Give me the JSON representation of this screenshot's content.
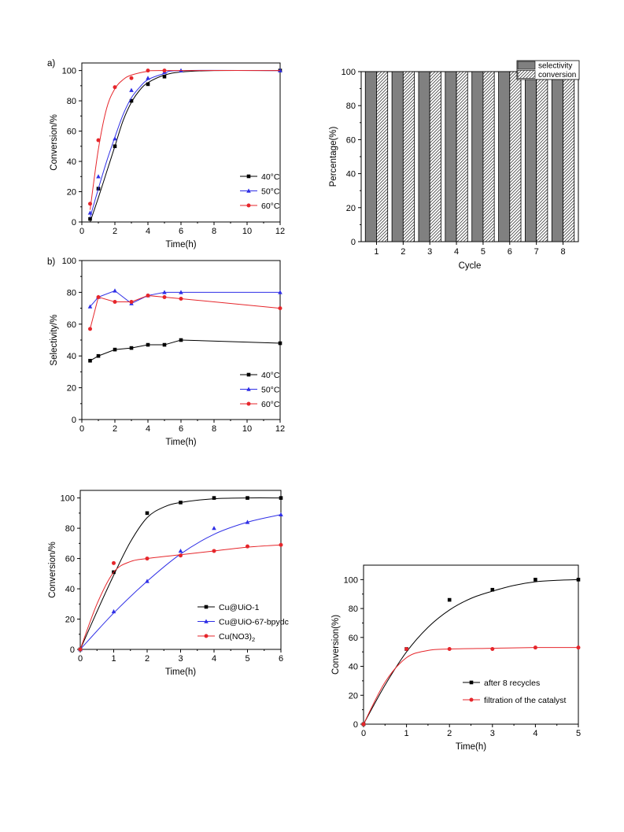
{
  "colors": {
    "black": "#000000",
    "blue": "#2f2fe6",
    "red": "#e6262b",
    "bar_fill": "#808080"
  },
  "chart_data": [
    {
      "id": "a",
      "type": "line",
      "panel_label": "a)",
      "xlabel": "Time(h)",
      "ylabel": "Conversion/%",
      "xlim": [
        0,
        12
      ],
      "ylim": [
        0,
        105
      ],
      "xticks": [
        0,
        2,
        4,
        6,
        8,
        10,
        12
      ],
      "yticks": [
        0,
        20,
        40,
        60,
        80,
        100
      ],
      "legend_position": "bottom-right",
      "series": [
        {
          "name": "40°C",
          "color": "#000000",
          "marker": "square",
          "points": [
            [
              0.5,
              2
            ],
            [
              1,
              22
            ],
            [
              2,
              50
            ],
            [
              3,
              80
            ],
            [
              4,
              91
            ],
            [
              5,
              96
            ],
            [
              12,
              100
            ]
          ],
          "curve": [
            [
              0.5,
              0
            ],
            [
              1,
              16
            ],
            [
              1.5,
              33
            ],
            [
              2,
              50
            ],
            [
              2.5,
              67
            ],
            [
              3,
              79
            ],
            [
              3.5,
              87
            ],
            [
              4,
              92
            ],
            [
              5,
              97
            ],
            [
              6,
              99
            ],
            [
              8,
              100
            ],
            [
              12,
              100
            ]
          ]
        },
        {
          "name": "50°C",
          "color": "#2f2fe6",
          "marker": "triangle",
          "points": [
            [
              0.5,
              6
            ],
            [
              1,
              30
            ],
            [
              2,
              55
            ],
            [
              3,
              87
            ],
            [
              4,
              95
            ],
            [
              5,
              99
            ],
            [
              6,
              100
            ],
            [
              12,
              100
            ]
          ],
          "curve": [
            [
              0.5,
              3
            ],
            [
              1,
              22
            ],
            [
              1.5,
              40
            ],
            [
              2,
              56
            ],
            [
              2.5,
              71
            ],
            [
              3,
              82
            ],
            [
              3.5,
              89
            ],
            [
              4,
              94
            ],
            [
              5,
              98
            ],
            [
              6,
              100
            ],
            [
              12,
              100
            ]
          ]
        },
        {
          "name": "60°C",
          "color": "#e6262b",
          "marker": "circle",
          "points": [
            [
              0.5,
              12
            ],
            [
              1,
              54
            ],
            [
              2,
              89
            ],
            [
              3,
              95
            ],
            [
              4,
              100
            ],
            [
              5,
              100
            ]
          ],
          "curve": [
            [
              0.5,
              8
            ],
            [
              1,
              48
            ],
            [
              1.5,
              75
            ],
            [
              2,
              88
            ],
            [
              2.5,
              94
            ],
            [
              3,
              97
            ],
            [
              4,
              99.5
            ],
            [
              5,
              100
            ],
            [
              12,
              100
            ]
          ]
        }
      ]
    },
    {
      "id": "b",
      "type": "line",
      "panel_label": "b)",
      "xlabel": "Time(h)",
      "ylabel": "Selectivity/%",
      "xlim": [
        0,
        12
      ],
      "ylim": [
        0,
        100
      ],
      "xticks": [
        0,
        2,
        4,
        6,
        8,
        10,
        12
      ],
      "yticks": [
        0,
        20,
        40,
        60,
        80,
        100
      ],
      "legend_position": "bottom-right",
      "series": [
        {
          "name": "40°C",
          "color": "#000000",
          "marker": "square",
          "points": [
            [
              0.5,
              37
            ],
            [
              1,
              40
            ],
            [
              2,
              44
            ],
            [
              3,
              45
            ],
            [
              4,
              47
            ],
            [
              5,
              47
            ],
            [
              6,
              50
            ],
            [
              12,
              48
            ]
          ]
        },
        {
          "name": "50°C",
          "color": "#2f2fe6",
          "marker": "triangle",
          "points": [
            [
              0.5,
              71
            ],
            [
              1,
              77
            ],
            [
              2,
              81
            ],
            [
              3,
              73
            ],
            [
              4,
              78
            ],
            [
              5,
              80
            ],
            [
              6,
              80
            ],
            [
              12,
              80
            ]
          ]
        },
        {
          "name": "60°C",
          "color": "#e6262b",
          "marker": "circle",
          "points": [
            [
              0.5,
              57
            ],
            [
              1,
              77
            ],
            [
              2,
              74
            ],
            [
              3,
              74
            ],
            [
              4,
              78
            ],
            [
              5,
              77
            ],
            [
              6,
              76
            ],
            [
              12,
              70
            ]
          ]
        }
      ]
    },
    {
      "id": "c",
      "type": "bar",
      "xlabel": "Cycle",
      "ylabel": "Percentage(%)",
      "ylim": [
        0,
        100
      ],
      "yticks": [
        0,
        20,
        40,
        60,
        80,
        100
      ],
      "categories": [
        "1",
        "2",
        "3",
        "4",
        "5",
        "6",
        "7",
        "8"
      ],
      "legend_position": "top-right",
      "series": [
        {
          "name": "selectivity",
          "pattern": "solid",
          "values": [
            100,
            100,
            100,
            100,
            100,
            100,
            100,
            100
          ]
        },
        {
          "name": "conversion",
          "pattern": "hatched",
          "values": [
            100,
            100,
            100,
            100,
            100,
            100,
            100,
            100
          ]
        }
      ]
    },
    {
      "id": "d",
      "type": "line",
      "xlabel": "Time(h)",
      "ylabel": "Conversion/%",
      "xlim": [
        0,
        6
      ],
      "ylim": [
        0,
        105
      ],
      "xticks": [
        0,
        1,
        2,
        3,
        4,
        5,
        6
      ],
      "yticks": [
        0,
        20,
        40,
        60,
        80,
        100
      ],
      "legend_position": "bottom-right",
      "series": [
        {
          "name": "Cu@UiO-1",
          "color": "#000000",
          "marker": "square",
          "points": [
            [
              0,
              0
            ],
            [
              1,
              51
            ],
            [
              2,
              90
            ],
            [
              3,
              97
            ],
            [
              4,
              100
            ],
            [
              5,
              100
            ],
            [
              6,
              100
            ]
          ],
          "curve": [
            [
              0,
              0
            ],
            [
              0.5,
              25
            ],
            [
              1,
              49
            ],
            [
              1.5,
              71
            ],
            [
              2,
              87
            ],
            [
              2.5,
              94
            ],
            [
              3,
              97
            ],
            [
              4,
              99.5
            ],
            [
              5,
              100
            ],
            [
              6,
              100
            ]
          ]
        },
        {
          "name": "Cu@UiO-67-bpydc",
          "color": "#2f2fe6",
          "marker": "triangle",
          "points": [
            [
              0,
              0
            ],
            [
              1,
              25
            ],
            [
              2,
              45
            ],
            [
              3,
              65
            ],
            [
              4,
              80
            ],
            [
              5,
              84
            ],
            [
              6,
              89
            ]
          ],
          "curve": [
            [
              0,
              0
            ],
            [
              1,
              24
            ],
            [
              2,
              45
            ],
            [
              3,
              63
            ],
            [
              4,
              76
            ],
            [
              5,
              84
            ],
            [
              6,
              89
            ]
          ]
        },
        {
          "name": "Cu(NO3)2",
          "color": "#e6262b",
          "marker": "circle",
          "points": [
            [
              0,
              0
            ],
            [
              1,
              57
            ],
            [
              2,
              60
            ],
            [
              3,
              62
            ],
            [
              4,
              65
            ],
            [
              5,
              68
            ],
            [
              6,
              69
            ]
          ],
          "curve": [
            [
              0,
              0
            ],
            [
              0.5,
              30
            ],
            [
              1,
              51
            ],
            [
              1.5,
              58
            ],
            [
              2,
              60
            ],
            [
              3,
              62.5
            ],
            [
              4,
              65
            ],
            [
              5,
              67.5
            ],
            [
              6,
              69
            ]
          ]
        }
      ]
    },
    {
      "id": "e",
      "type": "line",
      "xlabel": "Time(h)",
      "ylabel": "Conversion(%)",
      "xlim": [
        0,
        5
      ],
      "ylim": [
        0,
        110
      ],
      "xticks": [
        0,
        1,
        2,
        3,
        4,
        5
      ],
      "yticks": [
        0,
        20,
        40,
        60,
        80,
        100
      ],
      "legend_position": "bottom-right",
      "series": [
        {
          "name": "after 8 recycles",
          "color": "#000000",
          "marker": "square",
          "points": [
            [
              0,
              0
            ],
            [
              1,
              52
            ],
            [
              2,
              86
            ],
            [
              3,
              93
            ],
            [
              4,
              100
            ],
            [
              5,
              100
            ]
          ],
          "curve": [
            [
              0,
              0
            ],
            [
              0.5,
              27
            ],
            [
              1,
              50
            ],
            [
              1.5,
              67
            ],
            [
              2,
              79
            ],
            [
              2.5,
              87
            ],
            [
              3,
              92
            ],
            [
              3.5,
              96
            ],
            [
              4,
              98.5
            ],
            [
              4.5,
              99.5
            ],
            [
              5,
              100
            ]
          ]
        },
        {
          "name": "filtration of the catalyst",
          "color": "#e6262b",
          "marker": "circle",
          "points": [
            [
              0,
              0
            ],
            [
              1,
              52
            ],
            [
              2,
              52
            ],
            [
              3,
              52
            ],
            [
              4,
              53
            ],
            [
              5,
              53
            ]
          ],
          "curve": [
            [
              0,
              0
            ],
            [
              0.5,
              29
            ],
            [
              1,
              46
            ],
            [
              1.5,
              51
            ],
            [
              2,
              52
            ],
            [
              3,
              52.5
            ],
            [
              4,
              53
            ],
            [
              5,
              53
            ]
          ]
        }
      ]
    }
  ]
}
